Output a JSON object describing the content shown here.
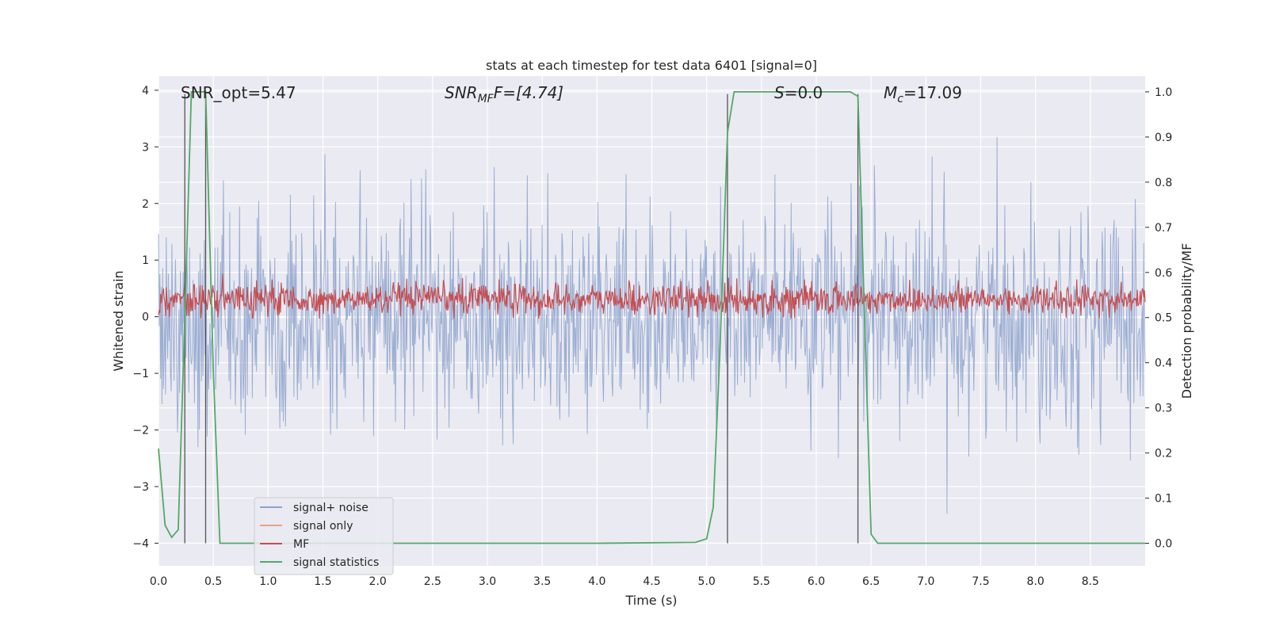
{
  "chart_data": {
    "type": "line",
    "title": "stats at each timestep for test data 6401 [signal=0]",
    "xlabel": "Time (s)",
    "ylabel": "Whitened strain",
    "y2label": "Detection probability/MF",
    "xlim": [
      0.0,
      9.0
    ],
    "ylim": [
      -4.4,
      4.25
    ],
    "y2lim": [
      -0.05,
      1.035
    ],
    "x_ticks": [
      "0.0",
      "0.5",
      "1.0",
      "1.5",
      "2.0",
      "2.5",
      "3.0",
      "3.5",
      "4.0",
      "4.5",
      "5.0",
      "5.5",
      "6.0",
      "6.5",
      "7.0",
      "7.5",
      "8.0",
      "8.5"
    ],
    "y_ticks": [
      "4",
      "3",
      "2",
      "1",
      "0",
      "−1",
      "−2",
      "−3",
      "−4"
    ],
    "y2_ticks": [
      "1.0",
      "0.9",
      "0.8",
      "0.7",
      "0.6",
      "0.5",
      "0.4",
      "0.3",
      "0.2",
      "0.1",
      "0.0"
    ],
    "grid": true,
    "legend_position": "lower-left",
    "annotations": {
      "snr_opt": "SNR_opt=5.47",
      "snr_mf_base": "SNR",
      "snr_mf_sub": "MF",
      "snr_mf_rest": "F=[4.74]",
      "s_base": "S",
      "s_rest": "=0.0",
      "mc_base": "M",
      "mc_sub": "c",
      "mc_rest": "=17.09"
    },
    "vertical_lines_x": [
      0.24,
      0.43,
      5.19,
      6.38
    ],
    "series": [
      {
        "name": "signal+ noise",
        "color": "#8ea3cc",
        "description_band": {
          "x_start": 0.0,
          "x_end": 9.0,
          "y_center": 0.0,
          "y_spread": 1.5
        }
      },
      {
        "name": "signal only",
        "color": "#e8a285",
        "values": []
      },
      {
        "name": "MF",
        "color": "#c44e52",
        "axis": "right",
        "description_band": {
          "x_start": 0.0,
          "x_end": 9.0,
          "y_low": 0.5,
          "y_high": 0.58
        }
      },
      {
        "name": "signal statistics",
        "color": "#55a868",
        "axis": "right",
        "x": [
          0.0,
          0.06,
          0.12,
          0.18,
          0.24,
          0.3,
          0.36,
          0.43,
          0.5,
          0.56,
          1.0,
          2.0,
          3.0,
          4.0,
          4.9,
          5.0,
          5.06,
          5.12,
          5.19,
          5.25,
          5.31,
          6.0,
          6.31,
          6.38,
          6.44,
          6.5,
          6.56,
          7.0,
          8.0,
          9.0
        ],
        "y": [
          0.21,
          0.04,
          0.013,
          0.03,
          0.5,
          1.0,
          1.0,
          1.0,
          0.38,
          0.0,
          0.0,
          0.0,
          0.0,
          0.0,
          0.002,
          0.01,
          0.08,
          0.42,
          0.91,
          1.0,
          1.0,
          1.0,
          1.0,
          0.99,
          0.5,
          0.02,
          0.0,
          0.0,
          0.0,
          0.0
        ]
      }
    ]
  }
}
